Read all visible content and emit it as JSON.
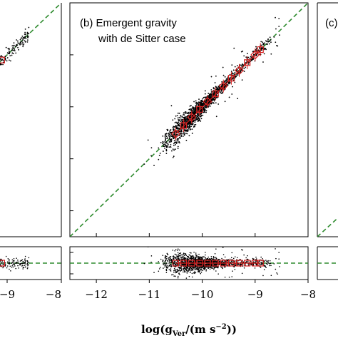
{
  "chart_data": {
    "type": "scatter",
    "panel_b": {
      "title_line1": "(b) Emergent gravity",
      "title_line2": "with de Sitter case",
      "xlim": [
        -12.5,
        -8
      ],
      "ylim": [
        -12.5,
        -8
      ],
      "one_to_one_line": true,
      "binned_x": [
        -10.5,
        -10.35,
        -10.2,
        -10.05,
        -9.9,
        -9.75,
        -9.6,
        -9.45,
        -9.3,
        -9.15,
        -9.0,
        -8.9
      ],
      "binned_y": [
        -10.52,
        -10.36,
        -10.2,
        -10.05,
        -9.9,
        -9.75,
        -9.6,
        -9.45,
        -9.3,
        -9.15,
        -9.0,
        -8.9
      ]
    },
    "residual_b": {
      "xlim": [
        -12.5,
        -8
      ],
      "zero_line": true
    },
    "x_ticks_b": [
      "−12",
      "−11",
      "−10",
      "−9",
      "−8"
    ],
    "x_ticks_left": [
      "−9",
      "−8"
    ],
    "xlabel_base": "log(g",
    "xlabel_sub": "Ver",
    "xlabel_units": "/(m s",
    "xlabel_sup": "−2",
    "xlabel_end": "))",
    "panel_c_label": "(c)"
  },
  "colors": {
    "points": "#000000",
    "bins": "#d62020",
    "dashed_line": "#2e8b2e"
  }
}
